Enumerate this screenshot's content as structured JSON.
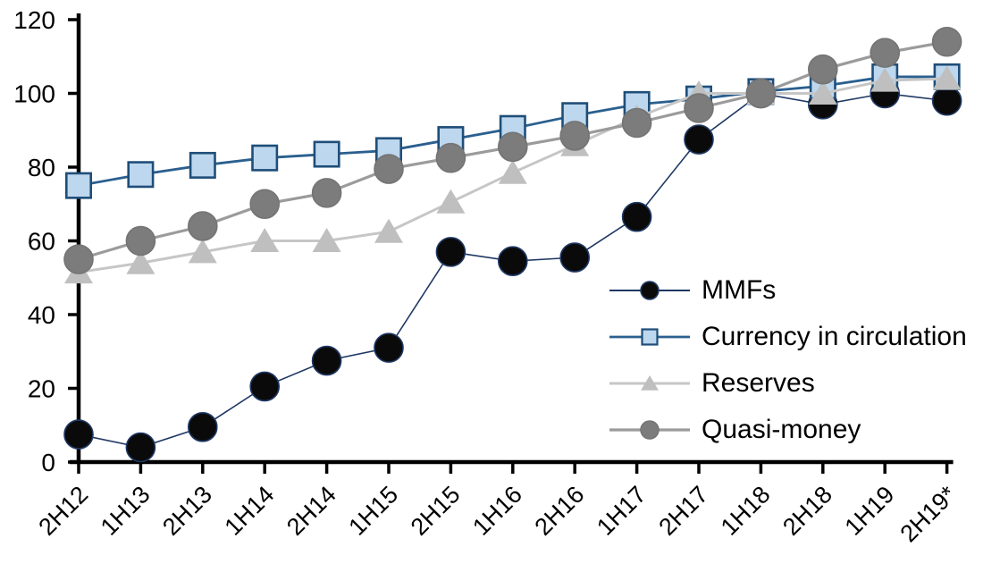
{
  "chart_data": {
    "type": "line",
    "title": "",
    "xlabel": "",
    "ylabel": "",
    "categories": [
      "2H12",
      "1H13",
      "2H13",
      "1H14",
      "2H14",
      "1H15",
      "2H15",
      "1H16",
      "2H16",
      "1H17",
      "2H17",
      "1H18",
      "2H18",
      "1H19",
      "2H19*"
    ],
    "series": [
      {
        "name": "MMFs",
        "marker": "circle",
        "marker_fill": "#0a0a0a",
        "marker_stroke": "#1F3864",
        "line_color": "#1F3864",
        "line_width": 1.6,
        "values": [
          7.5,
          4,
          9.5,
          20.5,
          27.5,
          31,
          57,
          54.5,
          55.5,
          66.5,
          87.5,
          100,
          97,
          100,
          98
        ]
      },
      {
        "name": "Currency in circulation",
        "marker": "square",
        "marker_fill": "#BDD7EE",
        "marker_stroke": "#1F4E79",
        "line_color": "#2A5F8F",
        "line_width": 2.8,
        "values": [
          75,
          78,
          80.5,
          82.5,
          83.5,
          84.5,
          87.5,
          90.5,
          94,
          97,
          98.5,
          100.5,
          102,
          104.5,
          104.5
        ]
      },
      {
        "name": "Reserves",
        "marker": "triangle",
        "marker_fill": "#BFBFBF",
        "marker_stroke": "none",
        "line_color": "#C6C6C6",
        "line_width": 3,
        "values": [
          51.5,
          54,
          57,
          60,
          60,
          62.5,
          70.5,
          78.5,
          86,
          93.5,
          100,
          100,
          100,
          103.5,
          104
        ]
      },
      {
        "name": "Quasi-money",
        "marker": "circle",
        "marker_fill": "#7C7C7C",
        "marker_stroke": "#747474",
        "line_color": "#9B9B9B",
        "line_width": 3.2,
        "values": [
          55,
          60,
          64,
          70,
          73,
          79.5,
          82.5,
          85.5,
          88.5,
          92,
          96,
          100,
          106.5,
          111,
          114
        ]
      }
    ],
    "y_axis": {
      "min": 0,
      "max": 120,
      "tick_step": 20,
      "tick_labels": [
        "0",
        "20",
        "40",
        "60",
        "80",
        "100",
        "120"
      ]
    },
    "x_axis": {
      "label_rotation_deg": -45,
      "ticks_on_categories": true
    },
    "legend": {
      "position": "inside-right",
      "items": [
        "MMFs",
        "Currency in circulation",
        "Reserves",
        "Quasi-money"
      ]
    },
    "grid": "off",
    "axis_color": "#000000",
    "background_color": "#FFFFFF"
  }
}
